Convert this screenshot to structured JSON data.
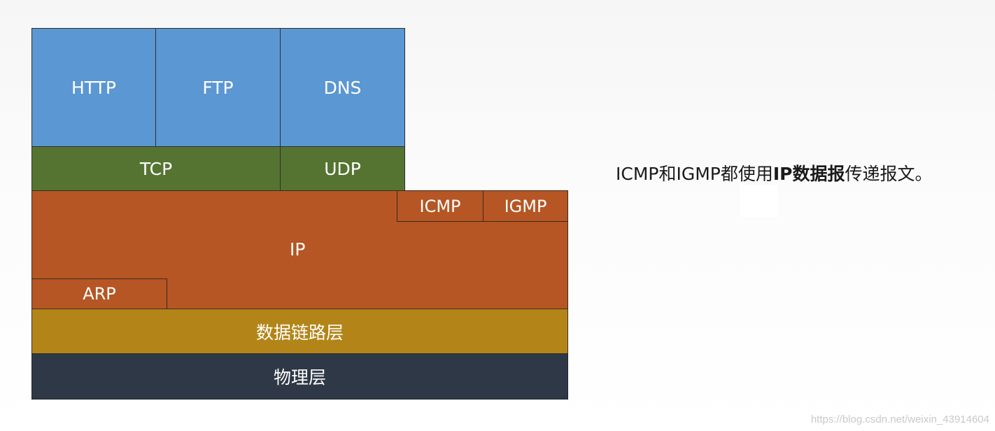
{
  "application_layer": {
    "http": "HTTP",
    "ftp": "FTP",
    "dns": "DNS"
  },
  "transport_layer": {
    "tcp": "TCP",
    "udp": "UDP"
  },
  "network_layer": {
    "ip": "IP",
    "icmp": "ICMP",
    "igmp": "IGMP",
    "arp": "ARP"
  },
  "link_layer": {
    "label": "数据链路层"
  },
  "physical_layer": {
    "label": "物理层"
  },
  "note": {
    "prefix": "ICMP和IGMP都使用",
    "bold": "IP数据报",
    "suffix": "传递报文。"
  },
  "watermark": "https://blog.csdn.net/weixin_43914604",
  "colors": {
    "application": "#5b97d2",
    "transport": "#557432",
    "network": "#b65624",
    "link": "#b38518",
    "physical": "#2f3846"
  }
}
